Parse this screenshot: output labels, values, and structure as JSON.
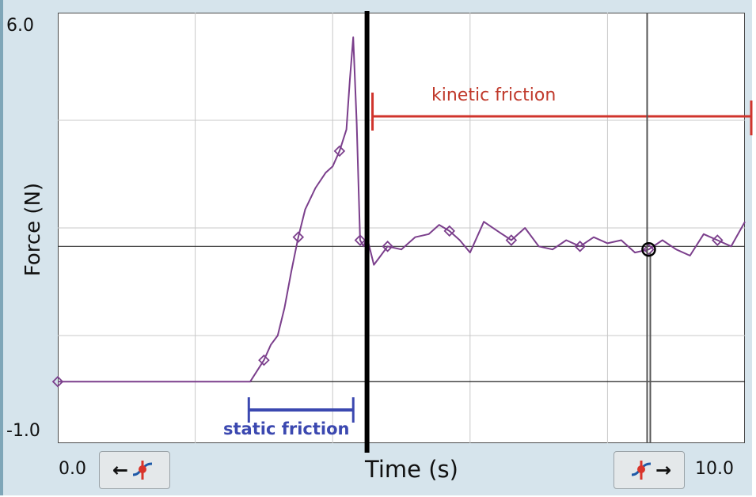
{
  "chart_data": {
    "type": "line",
    "xlabel": "Time (s)",
    "ylabel": "Force (N)",
    "xlim": [
      0.0,
      10.0
    ],
    "ylim": [
      -1.0,
      6.0
    ],
    "x_tick_labels": [
      "0.0",
      "10.0"
    ],
    "y_tick_labels": [
      "6.0",
      "-1.0"
    ],
    "grid": true,
    "series": [
      {
        "color": "#7b3f8c",
        "x": [
          0.0,
          0.8,
          1.6,
          2.4,
          2.8,
          3.0,
          3.1,
          3.2,
          3.3,
          3.4,
          3.5,
          3.6,
          3.75,
          3.9,
          4.0,
          4.1,
          4.2,
          4.25,
          4.3,
          4.35,
          4.4,
          4.45,
          4.5,
          4.6,
          4.7,
          4.8,
          5.0,
          5.2,
          5.4,
          5.55,
          5.7,
          5.85,
          6.0,
          6.2,
          6.4,
          6.6,
          6.8,
          7.0,
          7.2,
          7.4,
          7.6,
          7.8,
          8.0,
          8.2,
          8.4,
          8.6,
          8.8,
          9.0,
          9.2,
          9.4,
          9.6,
          9.8,
          10.0
        ],
        "y": [
          0.0,
          0.0,
          0.0,
          0.0,
          0.0,
          0.35,
          0.6,
          0.75,
          1.2,
          1.8,
          2.35,
          2.8,
          3.15,
          3.4,
          3.5,
          3.75,
          4.1,
          4.9,
          5.6,
          4.2,
          2.3,
          2.2,
          2.35,
          1.9,
          2.05,
          2.2,
          2.15,
          2.35,
          2.4,
          2.55,
          2.45,
          2.3,
          2.1,
          2.6,
          2.45,
          2.3,
          2.5,
          2.2,
          2.15,
          2.3,
          2.2,
          2.35,
          2.25,
          2.3,
          2.1,
          2.15,
          2.3,
          2.15,
          2.05,
          2.4,
          2.3,
          2.2,
          2.6
        ]
      }
    ],
    "annotations": {
      "kinetic": "kinetic friction",
      "static": "static friction"
    }
  },
  "ui": {
    "x_min_label": "0.0",
    "x_max_label": "10.0",
    "left_button_arrow": "←",
    "right_button_arrow": "→"
  }
}
